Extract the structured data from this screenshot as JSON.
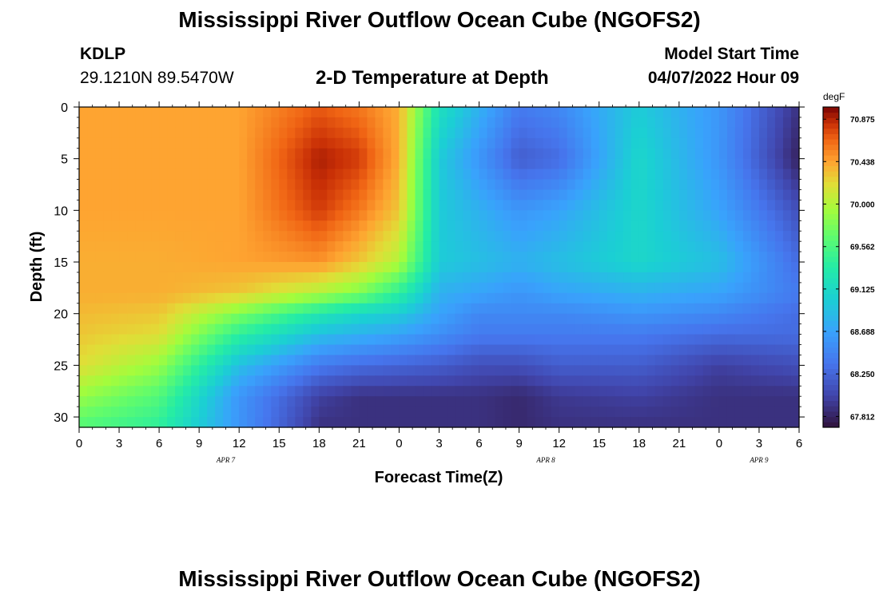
{
  "header": {
    "title": "Mississippi River Outflow Ocean Cube (NGOFS2)",
    "station_id": "KDLP",
    "coords": "29.1210N  89.5470W",
    "subtitle": "2-D Temperature at Depth",
    "model_start_label": "Model Start Time",
    "model_start_value": "04/07/2022 Hour 09",
    "footer_title": "Mississippi River Outflow Ocean Cube (NGOFS2)"
  },
  "chart_data": {
    "type": "heatmap",
    "title": "2-D Temperature at Depth",
    "xlabel": "Forecast Time(Z)",
    "ylabel": "Depth (ft)",
    "x_tick_labels": [
      "0",
      "3",
      "6",
      "9",
      "12",
      "15",
      "18",
      "21",
      "0",
      "3",
      "6",
      "9",
      "12",
      "15",
      "18",
      "21",
      "0",
      "3",
      "6"
    ],
    "x_hours": [
      0,
      3,
      6,
      9,
      12,
      15,
      18,
      21,
      24,
      27,
      30,
      33,
      36,
      39,
      42,
      45,
      48,
      51,
      54
    ],
    "date_labels": [
      {
        "label": "APR 7",
        "hour": 11
      },
      {
        "label": "APR 8",
        "hour": 35
      },
      {
        "label": "APR 9",
        "hour": 51
      }
    ],
    "xlim": [
      0,
      54
    ],
    "ylim": [
      0,
      31
    ],
    "y_inverted": true,
    "y_ticks": [
      0,
      5,
      10,
      15,
      20,
      25,
      30
    ],
    "colorbar": {
      "unit": "degF",
      "min": 67.7,
      "max": 71.0,
      "tick_values": [
        67.812,
        68.25,
        68.688,
        69.125,
        69.562,
        70.0,
        70.438,
        70.875
      ],
      "tick_labels": [
        "67.812",
        "68.250",
        "68.688",
        "69.125",
        "69.562",
        "70.000",
        "70.438",
        "70.875"
      ]
    },
    "field_samples": {
      "x": [
        0,
        6,
        12,
        18,
        21,
        24,
        27,
        30,
        33,
        36,
        42,
        48,
        54
      ],
      "depth": [
        0,
        5,
        10,
        15,
        18,
        20,
        22,
        25,
        28,
        31
      ],
      "values": [
        [
          70.44,
          70.44,
          70.44,
          70.7,
          70.6,
          70.4,
          69.2,
          68.8,
          68.4,
          68.5,
          69.0,
          68.6,
          67.9
        ],
        [
          70.44,
          70.44,
          70.44,
          70.9,
          70.8,
          70.4,
          69.0,
          68.6,
          68.2,
          68.3,
          69.1,
          68.6,
          67.8
        ],
        [
          70.44,
          70.44,
          70.44,
          70.8,
          70.6,
          70.3,
          69.0,
          68.8,
          68.6,
          68.7,
          69.1,
          68.7,
          68.1
        ],
        [
          70.4,
          70.4,
          70.44,
          70.5,
          70.3,
          70.0,
          69.0,
          68.9,
          68.8,
          68.9,
          69.1,
          68.9,
          68.3
        ],
        [
          70.4,
          70.4,
          70.3,
          70.0,
          69.8,
          69.4,
          68.8,
          68.7,
          68.6,
          68.7,
          68.8,
          68.7,
          68.4
        ],
        [
          70.35,
          70.3,
          69.8,
          69.3,
          69.1,
          69.0,
          68.7,
          68.5,
          68.5,
          68.5,
          68.6,
          68.5,
          68.3
        ],
        [
          70.3,
          70.2,
          69.4,
          68.9,
          68.8,
          68.7,
          68.55,
          68.4,
          68.4,
          68.4,
          68.4,
          68.3,
          68.3
        ],
        [
          70.2,
          69.9,
          68.9,
          68.4,
          68.3,
          68.25,
          68.2,
          68.1,
          68.1,
          68.2,
          68.2,
          68.0,
          68.1
        ],
        [
          69.9,
          69.6,
          68.6,
          68.0,
          67.9,
          67.9,
          67.9,
          67.9,
          67.85,
          67.95,
          68.0,
          67.9,
          67.9
        ],
        [
          69.6,
          69.4,
          68.6,
          67.9,
          67.9,
          67.9,
          67.9,
          67.9,
          67.85,
          67.9,
          67.9,
          67.9,
          67.9
        ]
      ]
    }
  }
}
